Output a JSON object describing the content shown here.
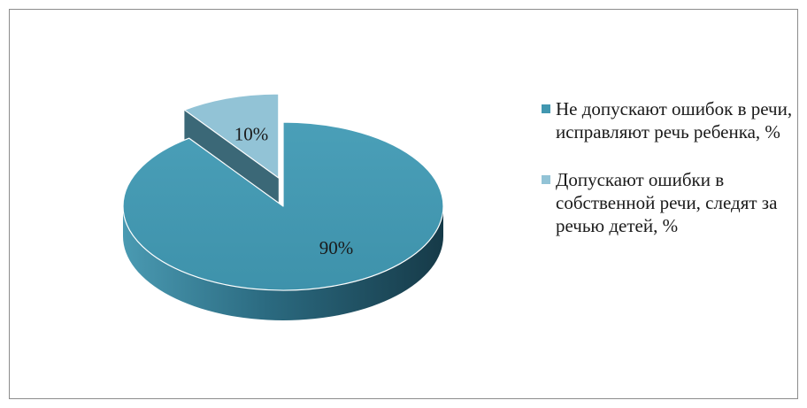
{
  "colors": {
    "series_0": "#4197b0",
    "series_1": "#92c3d6",
    "frame": "#8c8c8c",
    "text": "#1a1a1a"
  },
  "chart_data": {
    "type": "pie",
    "style": "3d-exploded",
    "title": "",
    "categories": [
      "Не допускают ошибок в речи, исправляют речь ребенка, %",
      "Допускают ошибки в собственной речи, следят за речью детей, %"
    ],
    "values": [
      90,
      10
    ],
    "data_labels": [
      "90%",
      "10%"
    ],
    "legend_placement": "right",
    "legend": [
      "Не допускают ошибок в речи, исправляют речь ребенка, %",
      "Допускают ошибки в собственной речи, следят за речью детей, %"
    ]
  }
}
